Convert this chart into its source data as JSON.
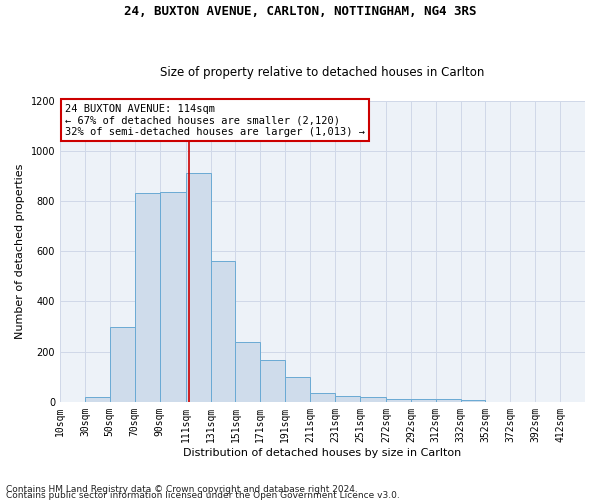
{
  "title1": "24, BUXTON AVENUE, CARLTON, NOTTINGHAM, NG4 3RS",
  "title2": "Size of property relative to detached houses in Carlton",
  "xlabel": "Distribution of detached houses by size in Carlton",
  "ylabel": "Number of detached properties",
  "footnote1": "Contains HM Land Registry data © Crown copyright and database right 2024.",
  "footnote2": "Contains public sector information licensed under the Open Government Licence v3.0.",
  "annotation_line1": "24 BUXTON AVENUE: 114sqm",
  "annotation_line2": "← 67% of detached houses are smaller (2,120)",
  "annotation_line3": "32% of semi-detached houses are larger (1,013) →",
  "bar_left_edges": [
    10,
    30,
    50,
    70,
    90,
    111,
    131,
    151,
    171,
    191,
    211,
    231,
    251,
    272,
    292,
    312,
    332,
    352,
    372,
    392
  ],
  "bar_heights": [
    0,
    20,
    300,
    830,
    835,
    910,
    560,
    240,
    165,
    100,
    35,
    22,
    20,
    10,
    10,
    10,
    8,
    0,
    0,
    0
  ],
  "bar_widths": [
    20,
    20,
    20,
    20,
    21,
    20,
    20,
    20,
    20,
    20,
    20,
    20,
    21,
    20,
    20,
    20,
    20,
    20,
    20,
    20
  ],
  "bar_color": "#cfdceb",
  "bar_edge_color": "#6aaad4",
  "vline_x": 114,
  "vline_color": "#cc0000",
  "ylim": [
    0,
    1200
  ],
  "yticks": [
    0,
    200,
    400,
    600,
    800,
    1000,
    1200
  ],
  "xtick_labels": [
    "10sqm",
    "30sqm",
    "50sqm",
    "70sqm",
    "90sqm",
    "111sqm",
    "131sqm",
    "151sqm",
    "171sqm",
    "191sqm",
    "211sqm",
    "231sqm",
    "251sqm",
    "272sqm",
    "292sqm",
    "312sqm",
    "332sqm",
    "352sqm",
    "372sqm",
    "392sqm",
    "412sqm"
  ],
  "xtick_positions": [
    10,
    30,
    50,
    70,
    90,
    111,
    131,
    151,
    171,
    191,
    211,
    231,
    251,
    272,
    292,
    312,
    332,
    352,
    372,
    392,
    412
  ],
  "grid_color": "#d0d8e8",
  "bg_color": "#edf2f8",
  "annotation_box_color": "#ffffff",
  "annotation_box_edge": "#cc0000",
  "title1_fontsize": 9,
  "title2_fontsize": 8.5,
  "axis_label_fontsize": 8,
  "tick_fontsize": 7,
  "annotation_fontsize": 7.5,
  "footnote_fontsize": 6.5
}
